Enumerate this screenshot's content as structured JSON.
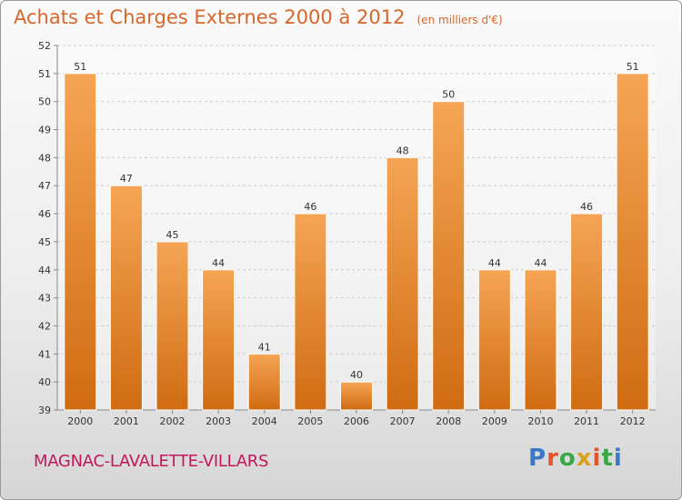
{
  "header": {
    "title": "Achats et Charges Externes 2000 à 2012",
    "subtitle": "(en milliers d'€)"
  },
  "footer": {
    "city": "MAGNAC-LAVALETTE-VILLARS",
    "logo_text": "Proxiti",
    "logo_colors": [
      "#3a78c9",
      "#e8542a",
      "#3aa845",
      "#d8a21a",
      "#e8542a",
      "#3aa845",
      "#3a78c9"
    ]
  },
  "colors": {
    "bar_top": "#f5a555",
    "bar_bottom": "#d06c12",
    "grid": "#cccccc",
    "title": "#d9662a",
    "city": "#c2185b"
  },
  "chart_data": {
    "type": "bar",
    "title": "Achats et Charges Externes 2000 à 2012",
    "subtitle": "(en milliers d'€)",
    "xlabel": "",
    "ylabel": "",
    "categories": [
      "2000",
      "2001",
      "2002",
      "2003",
      "2004",
      "2005",
      "2006",
      "2007",
      "2008",
      "2009",
      "2010",
      "2011",
      "2012"
    ],
    "values": [
      51,
      47,
      45,
      44,
      41,
      46,
      40,
      48,
      50,
      44,
      44,
      46,
      51
    ],
    "ylim": [
      39,
      52
    ],
    "yticks": [
      39,
      40,
      41,
      42,
      43,
      44,
      45,
      46,
      47,
      48,
      49,
      50,
      51,
      52
    ],
    "grid": true
  }
}
